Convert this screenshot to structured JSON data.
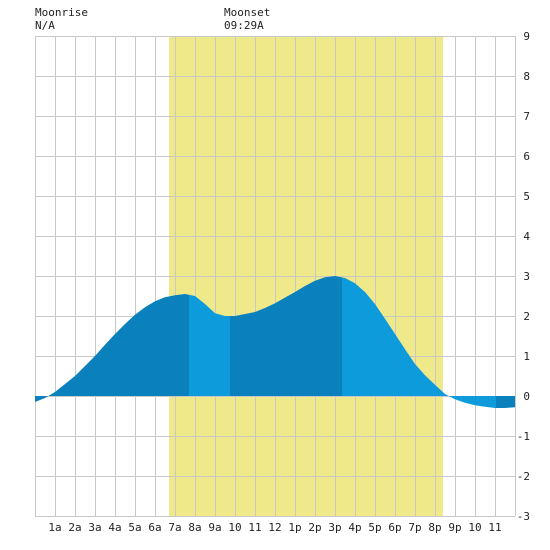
{
  "header": {
    "moonrise_label": "Moonrise",
    "moonrise_value": "N/A",
    "moonset_label": "Moonset",
    "moonset_value": "09:29A"
  },
  "colors": {
    "background": "#ffffff",
    "grid": "#c8c8c8",
    "daylight_band": "#f0e98a",
    "tide_light": "#0d9bdc",
    "tide_dark": "#0a80bd"
  },
  "chart_data": {
    "type": "area",
    "title": "",
    "xlabel": "",
    "ylabel": "",
    "xlim": [
      0,
      24
    ],
    "ylim": [
      -3,
      9
    ],
    "grid": true,
    "y_axis_side": "right",
    "x_tick_labels": [
      "1a",
      "2a",
      "3a",
      "4a",
      "5a",
      "6a",
      "7a",
      "8a",
      "9a",
      "10",
      "11",
      "12",
      "1p",
      "2p",
      "3p",
      "4p",
      "5p",
      "6p",
      "7p",
      "8p",
      "9p",
      "10",
      "11"
    ],
    "y_tick_labels": [
      "-3",
      "-2",
      "-1",
      "0",
      "1",
      "2",
      "3",
      "4",
      "5",
      "6",
      "7",
      "8",
      "9"
    ],
    "daylight": {
      "start_hour": 6.7,
      "end_hour": 20.4
    },
    "moonset_hour": 9.48,
    "series": [
      {
        "x": [
          0,
          0.5,
          1,
          1.5,
          2,
          2.5,
          3,
          3.5,
          4,
          4.5,
          5,
          5.5,
          6,
          6.5,
          7,
          7.5,
          8,
          8.5,
          9,
          9.5,
          10,
          10.5,
          11,
          11.5,
          12,
          12.5,
          13,
          13.5,
          14,
          14.5,
          15,
          15.5,
          16,
          16.5,
          17,
          17.5,
          18,
          18.5,
          19,
          19.5,
          20,
          20.5,
          21,
          21.5,
          22,
          22.5,
          23,
          23.5,
          24
        ],
        "y": [
          -0.15,
          -0.05,
          0.1,
          0.3,
          0.5,
          0.75,
          1.0,
          1.28,
          1.55,
          1.8,
          2.03,
          2.22,
          2.37,
          2.47,
          2.52,
          2.55,
          2.5,
          2.3,
          2.07,
          2.0,
          2.0,
          2.05,
          2.1,
          2.2,
          2.32,
          2.46,
          2.6,
          2.75,
          2.88,
          2.97,
          3.0,
          2.95,
          2.82,
          2.6,
          2.3,
          1.93,
          1.55,
          1.17,
          0.8,
          0.52,
          0.28,
          0.05,
          -0.08,
          -0.17,
          -0.23,
          -0.27,
          -0.3,
          -0.3,
          -0.28
        ]
      }
    ],
    "bands": [
      {
        "from": 0,
        "to": 7.7,
        "shade": "dark"
      },
      {
        "from": 7.7,
        "to": 9.75,
        "shade": "light"
      },
      {
        "from": 9.75,
        "to": 15.35,
        "shade": "dark"
      },
      {
        "from": 15.35,
        "to": 23.05,
        "shade": "light"
      },
      {
        "from": 23.05,
        "to": 24,
        "shade": "dark"
      }
    ]
  }
}
